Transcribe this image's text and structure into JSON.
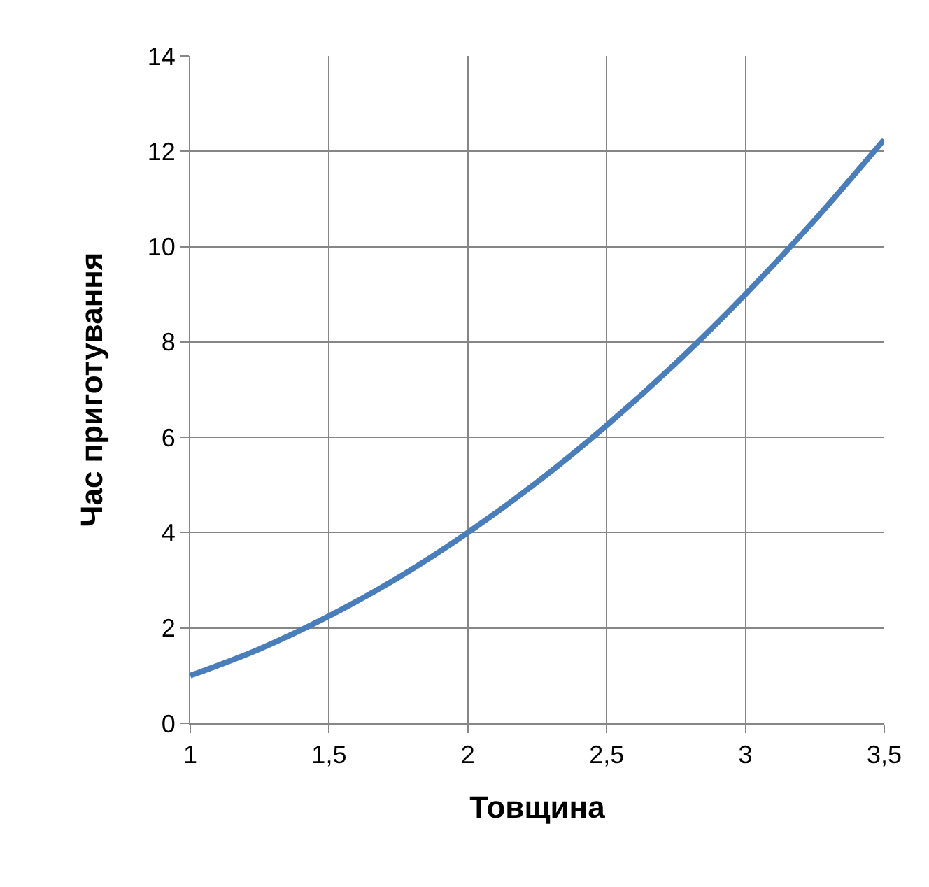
{
  "chart_data": {
    "type": "line",
    "xlabel": "Товщина",
    "ylabel": "Час приготування",
    "x": [
      1,
      1.25,
      1.5,
      1.75,
      2,
      2.25,
      2.5,
      2.75,
      3,
      3.25,
      3.5
    ],
    "series": [
      {
        "color": "#4a7ebb",
        "values": [
          1,
          1.56,
          2.25,
          3.06,
          4,
          5.06,
          6.25,
          7.56,
          9,
          10.56,
          12.25
        ]
      }
    ],
    "xlim": [
      1,
      3.5
    ],
    "xticks": [
      1,
      {
        "value": 1.5,
        "label": "1,5"
      },
      2,
      {
        "value": 2.5,
        "label": "2,5"
      },
      3,
      {
        "value": 3.5,
        "label": "3,5"
      }
    ],
    "ylim": [
      0,
      14
    ],
    "yticks": [
      0,
      2,
      4,
      6,
      8,
      10,
      12,
      14
    ],
    "grid": true,
    "marker": "none",
    "line_style": "solid"
  }
}
